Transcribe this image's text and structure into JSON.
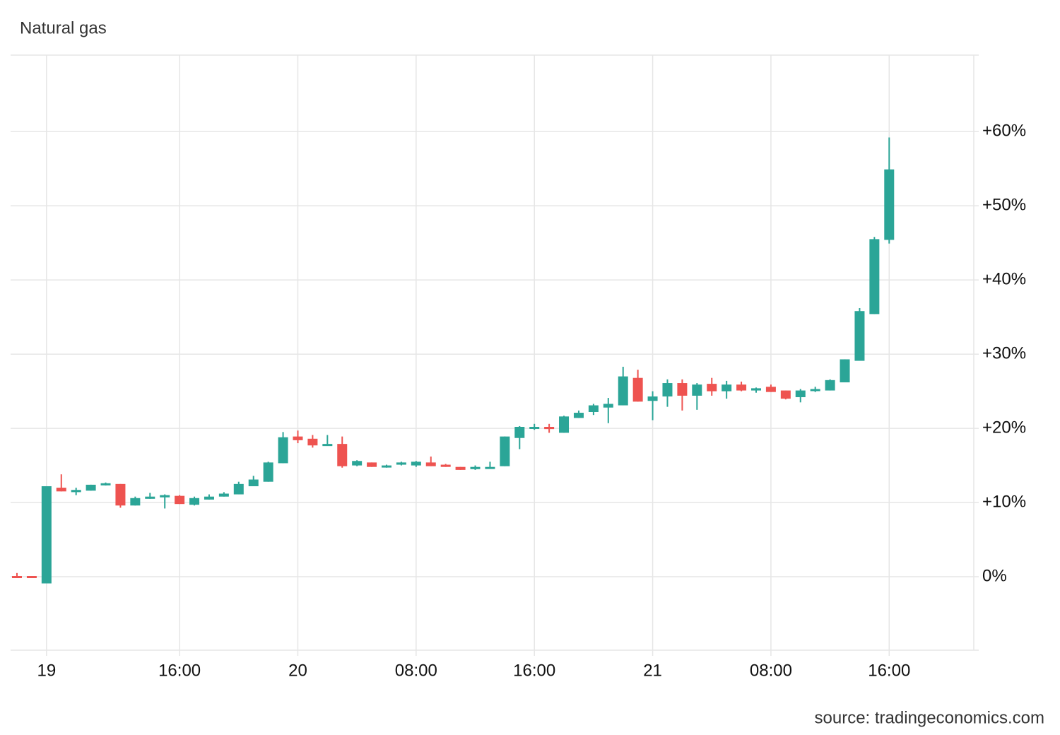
{
  "chart_data": {
    "type": "candlestick",
    "title": "Natural gas",
    "source": "source: tradingeconomics.com",
    "categories": [
      null,
      null,
      "19",
      null,
      null,
      null,
      null,
      null,
      null,
      null,
      null,
      "16:00",
      null,
      null,
      null,
      null,
      null,
      null,
      null,
      "20",
      null,
      null,
      null,
      null,
      null,
      null,
      null,
      "08:00",
      null,
      null,
      null,
      null,
      null,
      null,
      null,
      "16:00",
      null,
      null,
      null,
      null,
      null,
      null,
      null,
      "21",
      null,
      null,
      null,
      null,
      null,
      null,
      null,
      "08:00",
      null,
      null,
      null,
      null,
      null,
      null,
      null,
      "16:00"
    ],
    "open": [
      0.1,
      0.1,
      -0.9,
      12.0,
      11.4,
      11.6,
      12.4,
      12.5,
      9.6,
      10.5,
      10.7,
      10.9,
      9.7,
      10.4,
      10.8,
      11.1,
      12.2,
      12.8,
      15.3,
      18.9,
      18.6,
      17.8,
      17.9,
      15.0,
      15.4,
      14.8,
      15.1,
      15.0,
      15.4,
      15.1,
      14.8,
      14.5,
      14.7,
      14.9,
      18.7,
      20.0,
      20.2,
      19.4,
      21.4,
      22.2,
      22.8,
      23.1,
      26.8,
      23.7,
      24.3,
      26.1,
      24.4,
      26.0,
      25.0,
      25.9,
      25.1,
      25.6,
      25.1,
      24.2,
      25.1,
      25.1,
      26.2,
      29.1,
      35.4,
      45.4
    ],
    "high": [
      0.5,
      0.1,
      12.2,
      13.8,
      12.0,
      12.4,
      12.7,
      12.5,
      10.8,
      11.3,
      11.1,
      11.0,
      10.8,
      11.1,
      11.4,
      12.8,
      13.6,
      15.5,
      19.5,
      19.7,
      19.1,
      19.1,
      18.9,
      15.7,
      15.4,
      15.1,
      15.5,
      15.6,
      16.2,
      15.2,
      14.8,
      15.0,
      15.5,
      18.9,
      20.3,
      20.6,
      20.6,
      21.7,
      22.4,
      23.3,
      24.1,
      28.3,
      27.9,
      25.0,
      26.6,
      26.6,
      26.1,
      26.8,
      26.4,
      26.3,
      25.5,
      25.9,
      25.1,
      25.3,
      25.6,
      26.6,
      29.3,
      36.2,
      45.8,
      59.2
    ],
    "low": [
      0.0,
      0.0,
      -0.9,
      11.5,
      11.0,
      11.6,
      12.3,
      9.3,
      9.6,
      10.5,
      9.2,
      9.8,
      9.6,
      10.4,
      10.8,
      11.1,
      12.2,
      12.8,
      15.3,
      18.0,
      17.4,
      17.8,
      14.7,
      14.9,
      14.8,
      14.7,
      15.0,
      14.8,
      14.9,
      14.8,
      14.4,
      14.4,
      14.7,
      14.9,
      17.2,
      19.8,
      19.4,
      19.4,
      21.4,
      21.8,
      20.7,
      23.1,
      23.6,
      21.1,
      22.9,
      22.4,
      22.5,
      24.4,
      24.0,
      25.0,
      24.8,
      24.9,
      23.9,
      23.5,
      24.9,
      25.1,
      26.2,
      29.1,
      35.4,
      44.9
    ],
    "close": [
      0.0,
      0.0,
      12.2,
      11.5,
      11.7,
      12.4,
      12.6,
      9.6,
      10.6,
      10.8,
      11.0,
      9.8,
      10.6,
      10.8,
      11.2,
      12.5,
      13.1,
      15.4,
      18.8,
      18.4,
      17.7,
      17.9,
      14.9,
      15.6,
      14.8,
      15.0,
      15.4,
      15.5,
      14.9,
      14.8,
      14.4,
      14.8,
      14.8,
      18.9,
      20.2,
      20.2,
      19.9,
      21.6,
      22.1,
      23.1,
      23.3,
      27.0,
      23.6,
      24.3,
      26.1,
      24.4,
      25.9,
      25.0,
      25.9,
      25.1,
      25.4,
      24.9,
      24.0,
      25.1,
      25.3,
      26.5,
      29.3,
      35.8,
      45.5,
      54.9
    ],
    "up_color": "#2ba597",
    "down_color": "#ee5350",
    "ylim": [
      -9.9,
      70.3
    ],
    "yticks": [
      {
        "value": 0,
        "label": "0%"
      },
      {
        "value": 10,
        "label": "+10%"
      },
      {
        "value": 20,
        "label": "+20%"
      },
      {
        "value": 30,
        "label": "+30%"
      },
      {
        "value": 40,
        "label": "+40%"
      },
      {
        "value": 50,
        "label": "+50%"
      },
      {
        "value": 60,
        "label": "+60%"
      }
    ],
    "grid": true
  }
}
